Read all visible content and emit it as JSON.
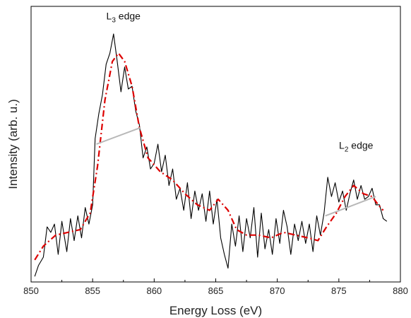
{
  "chart_data": {
    "type": "line",
    "title": "",
    "xlabel": "Energy Loss (eV)",
    "ylabel": "Intensity (arb. u.)",
    "xlim": [
      850,
      880
    ],
    "x_ticks": [
      850,
      855,
      860,
      865,
      870,
      875,
      880
    ],
    "y_ticks": [],
    "grid": false,
    "legend": "none",
    "annotations": [
      {
        "main": "L",
        "sub": "3",
        "rest": " edge",
        "x": 857.5,
        "y": 0.953
      },
      {
        "main": "L",
        "sub": "2",
        "rest": " edge",
        "x": 876.4,
        "y": 0.483
      }
    ],
    "series": [
      {
        "style": "solid",
        "color": "#000000",
        "x": [
          850.3,
          850.6,
          851.0,
          851.3,
          851.6,
          851.9,
          852.2,
          852.5,
          852.9,
          853.2,
          853.5,
          853.8,
          854.1,
          854.4,
          854.7,
          855.0,
          855.2,
          855.5,
          855.8,
          856.1,
          856.4,
          856.7,
          857.0,
          857.3,
          857.6,
          857.9,
          858.2,
          858.5,
          858.8,
          859.1,
          859.4,
          859.7,
          860.0,
          860.3,
          860.6,
          860.9,
          861.2,
          861.5,
          861.8,
          862.1,
          862.4,
          862.7,
          863.0,
          863.3,
          863.6,
          863.9,
          864.2,
          864.5,
          864.8,
          865.1,
          865.4,
          865.7,
          866.0,
          866.3,
          866.6,
          866.9,
          867.2,
          867.5,
          867.8,
          868.1,
          868.4,
          868.7,
          869.0,
          869.3,
          869.6,
          869.9,
          870.2,
          870.5,
          870.8,
          871.1,
          871.4,
          871.7,
          872.0,
          872.3,
          872.6,
          872.9,
          873.2,
          873.5,
          873.8,
          874.1,
          874.4,
          874.7,
          875.0,
          875.3,
          875.6,
          875.9,
          876.2,
          876.5,
          876.8,
          877.1,
          877.4,
          877.7,
          878.0,
          878.3,
          878.6,
          878.9
        ],
        "y": [
          0.02,
          0.06,
          0.09,
          0.2,
          0.18,
          0.21,
          0.1,
          0.22,
          0.11,
          0.23,
          0.15,
          0.24,
          0.16,
          0.27,
          0.21,
          0.28,
          0.52,
          0.61,
          0.68,
          0.79,
          0.83,
          0.9,
          0.8,
          0.69,
          0.78,
          0.7,
          0.71,
          0.62,
          0.57,
          0.45,
          0.49,
          0.41,
          0.43,
          0.5,
          0.4,
          0.46,
          0.35,
          0.41,
          0.3,
          0.34,
          0.26,
          0.36,
          0.23,
          0.33,
          0.26,
          0.32,
          0.22,
          0.33,
          0.21,
          0.3,
          0.16,
          0.1,
          0.05,
          0.21,
          0.13,
          0.24,
          0.11,
          0.23,
          0.16,
          0.27,
          0.09,
          0.25,
          0.12,
          0.19,
          0.1,
          0.23,
          0.14,
          0.26,
          0.2,
          0.1,
          0.21,
          0.15,
          0.22,
          0.14,
          0.21,
          0.11,
          0.24,
          0.17,
          0.25,
          0.38,
          0.31,
          0.36,
          0.29,
          0.33,
          0.26,
          0.32,
          0.37,
          0.3,
          0.35,
          0.3,
          0.31,
          0.34,
          0.28,
          0.28,
          0.23,
          0.22
        ]
      },
      {
        "style": "dash-dot",
        "color": "#dd0000",
        "x": [
          850.3,
          851.0,
          852.0,
          853.0,
          854.0,
          854.8,
          855.4,
          856.0,
          856.6,
          857.1,
          857.6,
          858.2,
          858.8,
          859.5,
          860.5,
          861.5,
          862.5,
          863.5,
          864.5,
          865.2,
          866.0,
          866.7,
          867.5,
          868.5,
          869.5,
          870.5,
          871.5,
          872.5,
          873.3,
          874.0,
          874.8,
          875.5,
          876.2,
          877.0,
          877.7,
          878.2,
          878.6
        ],
        "y": [
          0.08,
          0.13,
          0.17,
          0.18,
          0.19,
          0.25,
          0.42,
          0.66,
          0.8,
          0.83,
          0.8,
          0.71,
          0.56,
          0.45,
          0.4,
          0.37,
          0.32,
          0.28,
          0.26,
          0.3,
          0.26,
          0.19,
          0.17,
          0.17,
          0.16,
          0.18,
          0.17,
          0.16,
          0.15,
          0.2,
          0.25,
          0.31,
          0.35,
          0.32,
          0.31,
          0.28,
          0.26
        ]
      },
      {
        "style": "solid",
        "color": "#b8b8b8",
        "x": [
          855.3,
          858.9
        ],
        "y": [
          0.5,
          0.56
        ]
      },
      {
        "style": "solid",
        "color": "#b8b8b8",
        "x": [
          873.9,
          878.0
        ],
        "y": [
          0.24,
          0.31
        ]
      }
    ]
  }
}
